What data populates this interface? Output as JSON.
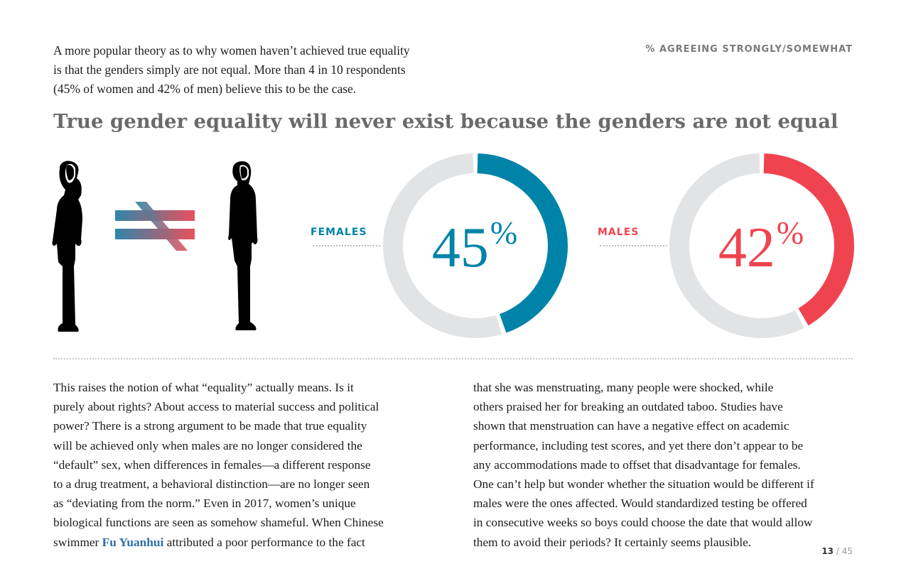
{
  "intro": {
    "lines": [
      "A more popular theory as to why women haven’t achieved true equality",
      "is that the genders simply are not equal. More than 4 in 10 respondents",
      "(45% of women and 42% of men) believe this to be the case."
    ]
  },
  "header": {
    "label": "% AGREEING STRONGLY/SOMEWHAT"
  },
  "headline": "True gender equality will never exist because the genders are not equal",
  "icons": {
    "female_figure": "female-silhouette-icon",
    "not_equal": "not-equal-icon",
    "male_figure": "male-silhouette-icon"
  },
  "chart_data": {
    "type": "pie",
    "title": "True gender equality will never exist because the genders are not equal",
    "subtitle": "% AGREEING STRONGLY/SOMEWHAT",
    "series": [
      {
        "name": "FEMALES",
        "value": 45,
        "label": "45",
        "sign": "%",
        "color": "#0083a9",
        "track_color": "#e2e3e5"
      },
      {
        "name": "MALES",
        "value": 42,
        "label": "42",
        "sign": "%",
        "color": "#ef4450",
        "track_color": "#e2e3e5"
      }
    ]
  },
  "body": {
    "left_lines": [
      "This raises the notion of what “equality” actually means. Is it",
      "purely about rights? About access to material success and political",
      "power? There is a strong argument to be made that true equality",
      "will be achieved only when males are no longer considered the",
      "“default” sex, when differences in females—a different response",
      "to a drug treatment, a behavioral distinction—are no longer seen",
      "as “deviating from the norm.” Even in 2017, women’s unique",
      "biological functions are seen as somehow shameful. When Chinese"
    ],
    "last_line": {
      "before": "swimmer ",
      "link": "Fu Yuanhui",
      "after": " attributed a poor performance to the fact"
    },
    "right_lines": [
      "that she was menstruating, many people were shocked, while",
      "others praised her for breaking an outdated taboo. Studies have",
      "shown that menstruation can have a negative effect on academic",
      "performance, including test scores, and yet there don’t appear to be",
      "any accommodations made to offset that disadvantage for females.",
      "One can’t help but wonder whether the situation would be different if",
      "males were the ones affected. Would standardized testing be offered",
      "in consecutive weeks so boys could choose the date that would allow",
      "them to avoid their periods? It certainly seems plausible."
    ]
  },
  "folio": {
    "page": "13",
    "total": "/ 45"
  }
}
